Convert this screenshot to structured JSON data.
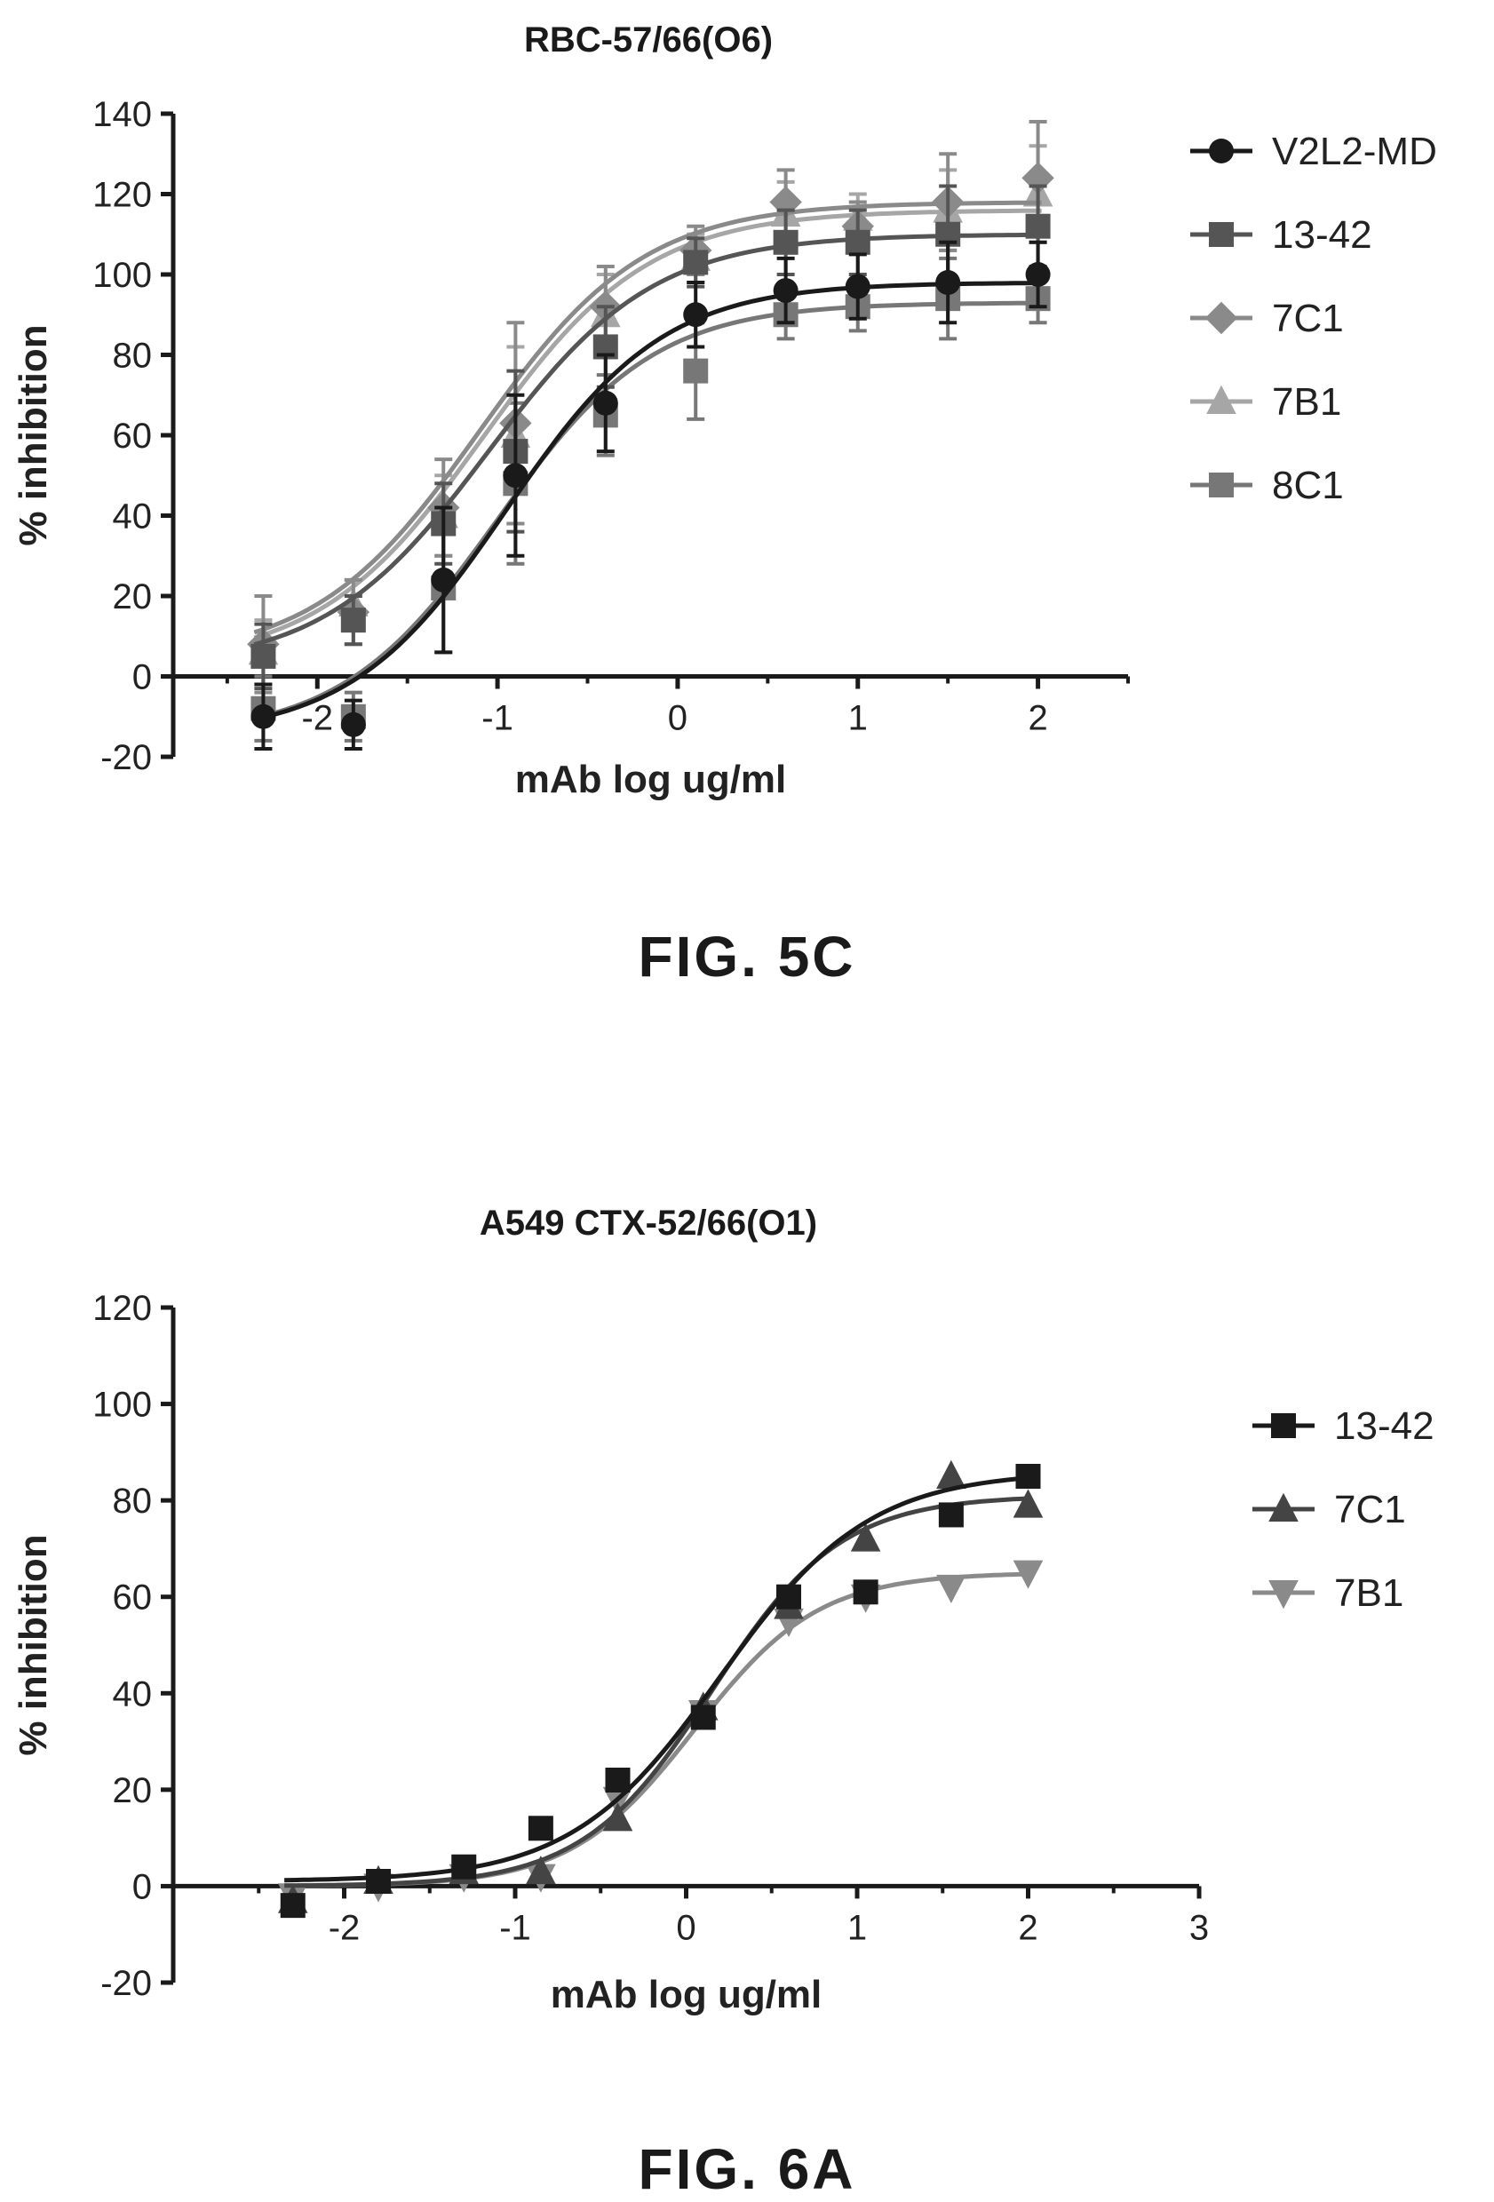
{
  "figures": [
    {
      "caption": "FIG. 5C",
      "chart_data": {
        "type": "line",
        "title": "RBC-57/66(O6)",
        "xlabel": "mAb log ug/ml",
        "ylabel": "% inhibition",
        "xlim": [
          -2.8,
          2.5
        ],
        "ylim": [
          -20,
          140
        ],
        "xticks": [
          -2,
          -1,
          0,
          1,
          2
        ],
        "xtick_labels": [
          "-2",
          "-1",
          "0",
          "1",
          "2"
        ],
        "yticks": [
          -20,
          0,
          20,
          40,
          60,
          80,
          100,
          120,
          140
        ],
        "ytick_labels": [
          "-20",
          "0",
          "20",
          "40",
          "60",
          "80",
          "100",
          "120",
          "140"
        ],
        "legend_position": "right",
        "x": [
          -2.3,
          -1.8,
          -1.3,
          -0.9,
          -0.4,
          0.1,
          0.6,
          1.0,
          1.5,
          2.0
        ],
        "series": [
          {
            "name": "V2L2-MD",
            "marker": "circle",
            "color": "#1a1a1a",
            "values": [
              -10,
              -12,
              24,
              50,
              68,
              90,
              96,
              97,
              98,
              100
            ],
            "errors": [
              8,
              6,
              18,
              20,
              12,
              8,
              8,
              8,
              10,
              8
            ],
            "fit": {
              "bottom": -15,
              "top": 98,
              "logec50": -0.95,
              "hill": 1.0
            }
          },
          {
            "name": "13-42",
            "marker": "square",
            "color": "#555555",
            "values": [
              5,
              14,
              38,
              56,
              82,
              103,
              108,
              108,
              110,
              112
            ],
            "errors": [
              8,
              6,
              10,
              20,
              10,
              6,
              8,
              8,
              12,
              10
            ],
            "fit": {
              "bottom": 2,
              "top": 110,
              "logec50": -1.05,
              "hill": 0.95
            }
          },
          {
            "name": "7C1",
            "marker": "diamond",
            "color": "#8a8a8a",
            "values": [
              8,
              16,
              42,
              63,
              92,
              106,
              118,
              112,
              118,
              124
            ],
            "errors": [
              12,
              8,
              12,
              25,
              10,
              6,
              8,
              6,
              12,
              14
            ],
            "fit": {
              "bottom": 4,
              "top": 118,
              "logec50": -1.1,
              "hill": 0.95
            }
          },
          {
            "name": "7B1",
            "marker": "triangle",
            "color": "#a6a6a6",
            "values": [
              6,
              18,
              40,
              60,
              90,
              104,
              115,
              114,
              116,
              120
            ],
            "errors": [
              8,
              6,
              10,
              22,
              10,
              6,
              8,
              6,
              10,
              12
            ],
            "fit": {
              "bottom": 3,
              "top": 116,
              "logec50": -1.08,
              "hill": 0.95
            }
          },
          {
            "name": "8C1",
            "marker": "square",
            "color": "#777777",
            "values": [
              -8,
              -10,
              22,
              48,
              65,
              76,
              90,
              92,
              94,
              94
            ],
            "errors": [
              8,
              6,
              16,
              20,
              10,
              12,
              6,
              6,
              10,
              6
            ],
            "fit": {
              "bottom": -15,
              "top": 93,
              "logec50": -1.0,
              "hill": 1.0
            }
          }
        ]
      }
    },
    {
      "caption": "FIG. 6A",
      "chart_data": {
        "type": "line",
        "title": "A549 CTX-52/66(O1)",
        "xlabel": "mAb log ug/ml",
        "ylabel": "% inhibition",
        "xlim": [
          -3,
          3
        ],
        "ylim": [
          -20,
          120
        ],
        "xticks": [
          -2,
          -1,
          0,
          1,
          2,
          3
        ],
        "xtick_labels": [
          "-2",
          "-1",
          "0",
          "1",
          "2",
          "3"
        ],
        "yticks": [
          -20,
          0,
          20,
          40,
          60,
          80,
          100,
          120
        ],
        "ytick_labels": [
          "-20",
          "0",
          "20",
          "40",
          "60",
          "80",
          "100",
          "120"
        ],
        "legend_position": "right",
        "x": [
          -2.3,
          -1.8,
          -1.3,
          -0.85,
          -0.4,
          0.1,
          0.6,
          1.05,
          1.55,
          2.0
        ],
        "series": [
          {
            "name": "13-42",
            "marker": "square",
            "color": "#1a1a1a",
            "values": [
              -4,
              1,
              4,
              12,
              22,
              35,
              60,
              61,
              77,
              85
            ],
            "fit": {
              "bottom": 1,
              "top": 86,
              "logec50": 0.2,
              "hill": 1.0
            }
          },
          {
            "name": "7C1",
            "marker": "triangle",
            "color": "#444444",
            "values": [
              -3,
              1,
              3,
              3,
              14,
              37,
              58,
              72,
              85,
              79
            ],
            "fit": {
              "bottom": 0,
              "top": 81,
              "logec50": 0.15,
              "hill": 1.15
            }
          },
          {
            "name": "7B1",
            "marker": "triangle-down",
            "color": "#8a8a8a",
            "values": [
              -2,
              0,
              2,
              2,
              18,
              36,
              55,
              60,
              62,
              65
            ],
            "fit": {
              "bottom": 0,
              "top": 65,
              "logec50": 0.05,
              "hill": 1.2
            }
          }
        ]
      }
    }
  ]
}
